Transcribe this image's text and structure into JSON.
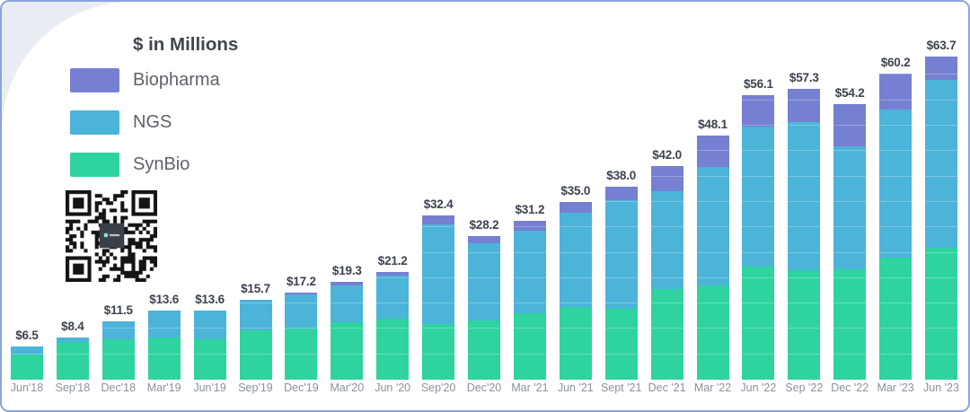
{
  "frame": {
    "border_color": "#8ba4dc",
    "corner_wedge_color": "#eaeef4",
    "background": "#ffffff"
  },
  "legend": {
    "title": "$ in Millions",
    "items": [
      {
        "label": "Biopharma",
        "color": "#7580d2"
      },
      {
        "label": "NGS",
        "color": "#4cb3d9"
      },
      {
        "label": "SynBio",
        "color": "#2ed3a0"
      }
    ]
  },
  "qr_code": {
    "description": "QR code with dark rounded center logo",
    "logo_color": "#3a4047"
  },
  "chart_data": {
    "type": "bar",
    "stacked": true,
    "title": "$ in Millions",
    "xlabel": "",
    "ylabel": "",
    "ylim": [
      0,
      65
    ],
    "grid": "faint white horizontal lines at $5 intervals over bars",
    "legend_position": "top-left",
    "categories": [
      "Jun'18",
      "Sep'18",
      "Dec'18",
      "Mar'19",
      "Jun'19",
      "Sep'19",
      "Dec'19",
      "Mar'20",
      "Jun '20",
      "Sep'20",
      "Dec'20",
      "Mar '21",
      "Jun '21",
      "Sept '21",
      "Dec '21",
      "Mar '22",
      "Jun '22",
      "Sep '22",
      "Dec '22",
      "Mar '23",
      "Jun '23"
    ],
    "series": [
      {
        "name": "Biopharma",
        "color": "#7580d2",
        "values": [
          0,
          0,
          0,
          0,
          0,
          0,
          0.4,
          0.7,
          0.7,
          1.8,
          1.3,
          1.8,
          2.1,
          2.7,
          4.9,
          6.3,
          6.3,
          6.5,
          8.3,
          7.0,
          4.7
        ]
      },
      {
        "name": "NGS",
        "color": "#4cb3d9",
        "values": [
          1.6,
          1.0,
          3.6,
          5.3,
          5.6,
          5.9,
          6.8,
          7.2,
          8.5,
          19.6,
          15.3,
          16.3,
          18.6,
          21.3,
          19.2,
          23.2,
          27.6,
          29.3,
          24.2,
          29.1,
          33.1
        ]
      },
      {
        "name": "SynBio",
        "color": "#2ed3a0",
        "values": [
          4.9,
          7.4,
          7.9,
          8.3,
          8.0,
          9.8,
          10.0,
          11.4,
          12.0,
          11.0,
          11.6,
          13.1,
          14.3,
          14.0,
          17.9,
          18.6,
          22.2,
          21.5,
          21.7,
          24.1,
          25.9
        ]
      }
    ],
    "totals": [
      6.5,
      8.4,
      11.5,
      13.6,
      13.6,
      15.7,
      17.2,
      19.3,
      21.2,
      32.4,
      28.2,
      31.2,
      35.0,
      38.0,
      42.0,
      48.1,
      56.1,
      57.3,
      54.2,
      60.2,
      63.7
    ],
    "total_labels": [
      "$6.5",
      "$8.4",
      "$11.5",
      "$13.6",
      "$13.6",
      "$15.7",
      "$17.2",
      "$19.3",
      "$21.2",
      "$32.4",
      "$28.2",
      "$31.2",
      "$35.0",
      "$38.0",
      "$42.0",
      "$48.1",
      "$56.1",
      "$57.3",
      "$54.2",
      "$60.2",
      "$63.7"
    ]
  }
}
